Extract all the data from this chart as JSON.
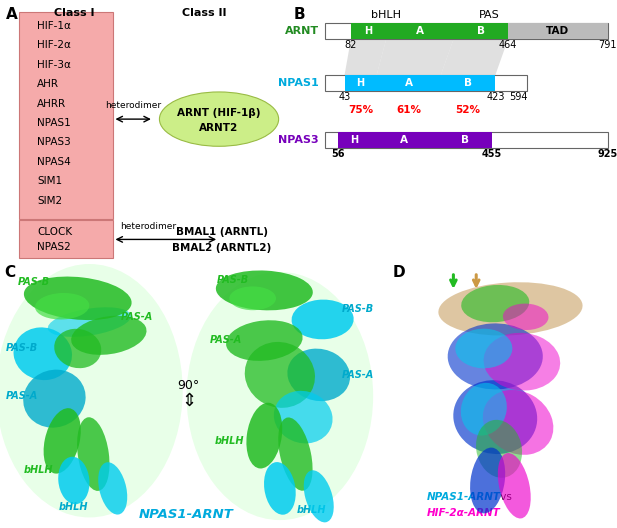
{
  "panel_A": {
    "label": "A",
    "class1_label": "Class I",
    "class2_label": "Class II",
    "class1_items": [
      "HIF-1α",
      "HIF-2α",
      "HIF-3α",
      "AHR",
      "AHRR",
      "NPAS1",
      "NPAS3",
      "NPAS4",
      "SIM1",
      "SIM2"
    ],
    "class1_box_color": "#f5aaaa",
    "class2_items_top_line1": "ARNT (HIF-1β)",
    "class2_items_top_line2": "ARNT2",
    "class2_items_bottom_line1": "BMAL1 (ARNTL)",
    "class2_items_bottom_line2": "BMAL2 (ARNTL2)",
    "clock_items": [
      "CLOCK",
      "NPAS2"
    ],
    "clock_box_color": "#f5aaaa",
    "ellipse_color": "#ccee88",
    "ellipse_edge": "#99bb44"
  },
  "panel_B": {
    "label": "B",
    "bhlh_label": "bHLH",
    "pas_label": "PAS",
    "arnt_label": "ARNT",
    "arnt_color": "#228B22",
    "arnt_green": "#22aa22",
    "arnt_tad_color": "#bbbbbb",
    "arnt_nums": [
      "82",
      "464",
      "791"
    ],
    "npas1_label": "NPAS1",
    "npas1_color": "#00aadd",
    "npas1_cyan": "#00bbff",
    "npas1_nums": [
      "43",
      "423",
      "594"
    ],
    "npas1_pct": [
      "75%",
      "61%",
      "52%"
    ],
    "npas3_label": "NPAS3",
    "npas3_color": "#7700bb",
    "npas3_purple": "#7700bb",
    "npas3_nums": [
      "56",
      "455",
      "925"
    ]
  },
  "panel_C_label": "C",
  "panel_D_label": "D",
  "npas1_arnt_label": "NPAS1-ARNT",
  "npas1_arnt_color": "#00aadd",
  "hif2a_arnt_label": "HIF-2α-ARNT",
  "hif2a_arnt_color": "#ff00cc",
  "background_color": "#ffffff"
}
